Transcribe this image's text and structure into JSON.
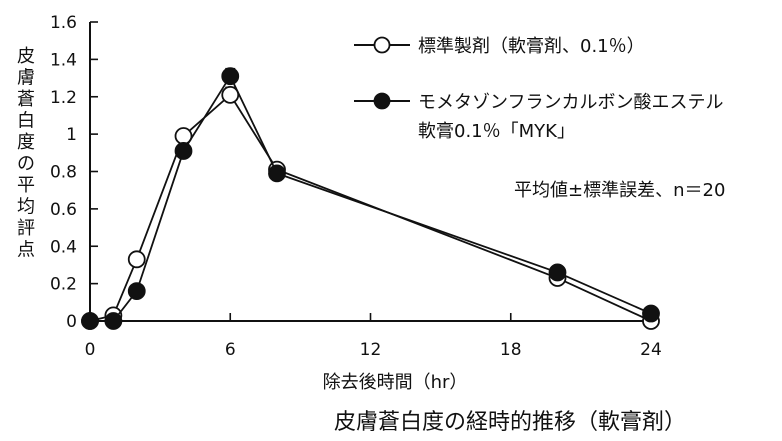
{
  "chart_data": {
    "type": "line",
    "title": "",
    "caption": "皮膚蒼白度の経時的推移（軟膏剤）",
    "xlabel": "除去後時間（hr）",
    "ylabel": "皮膚蒼白度の平均評点",
    "xlim": [
      0,
      24
    ],
    "ylim": [
      0,
      1.6
    ],
    "xticks": [
      0,
      6,
      12,
      18,
      24
    ],
    "yticks": [
      0,
      0.2,
      0.4,
      0.6,
      0.8,
      1,
      1.2,
      1.4,
      1.6
    ],
    "ytick_labels": [
      "0",
      "0.2",
      "0.4",
      "0.6",
      "0.8",
      "1",
      "1.2",
      "1.4",
      "1.6"
    ],
    "legend_position": "top-right",
    "annotation": "平均値±標準誤差、n＝20",
    "series": [
      {
        "name": "標準製剤（軟膏剤、0.1％）",
        "marker": "open-circle",
        "x": [
          0,
          1,
          2,
          4,
          6,
          8,
          20,
          24
        ],
        "y": [
          0,
          0.03,
          0.33,
          0.99,
          1.21,
          0.81,
          0.23,
          0.0
        ],
        "err": [
          0,
          0,
          0,
          0,
          0.04,
          0,
          0,
          0
        ]
      },
      {
        "name_line1": "モメタゾンフランカルボン酸エステル",
        "name_line2": "軟膏0.1％「MYK」",
        "marker": "filled-circle",
        "x": [
          0,
          1,
          2,
          4,
          6,
          8,
          20,
          24
        ],
        "y": [
          0,
          0.0,
          0.16,
          0.91,
          1.31,
          0.79,
          0.26,
          0.04
        ],
        "err": [
          0,
          0,
          0,
          0,
          0.04,
          0,
          0,
          0
        ]
      }
    ]
  }
}
